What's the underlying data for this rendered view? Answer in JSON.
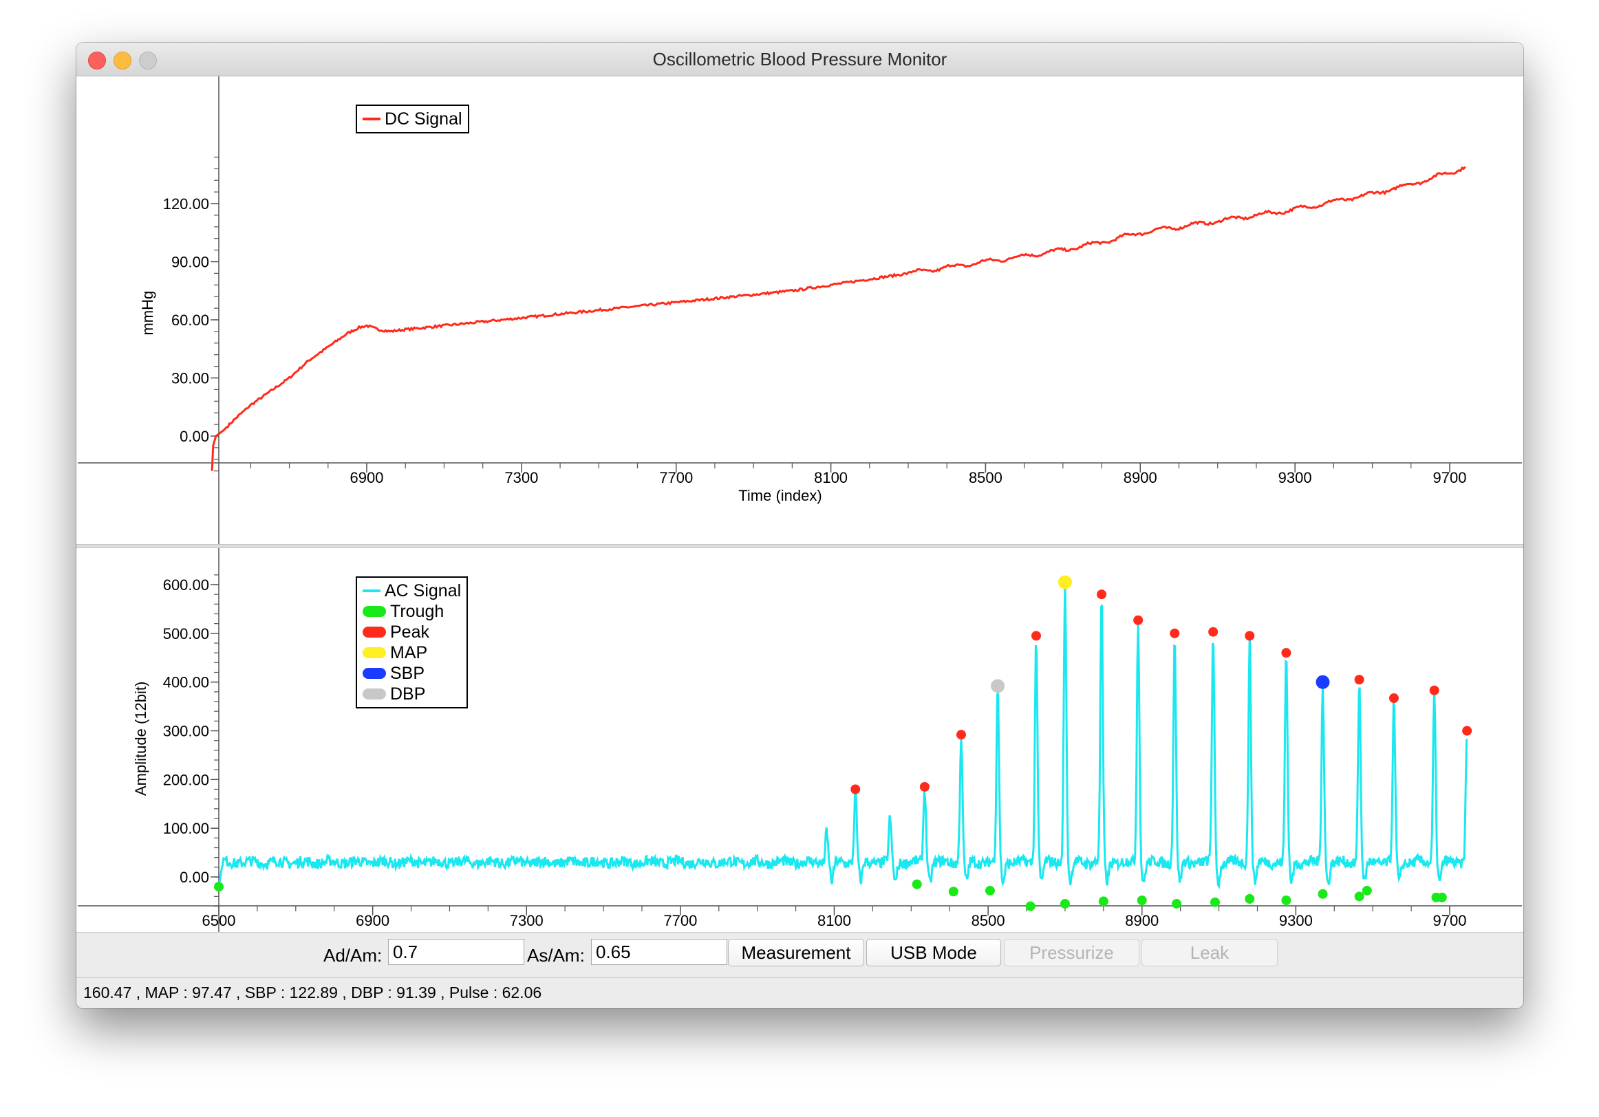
{
  "window": {
    "title": "Oscillometric Blood Pressure Monitor"
  },
  "chart_data": [
    {
      "type": "line",
      "ylabel": "mmHg",
      "xlabel": "Time  (index)",
      "xlim": [
        6500,
        9750
      ],
      "ylim": [
        -18,
        145
      ],
      "xticks": [
        6900,
        7300,
        7700,
        8100,
        8500,
        8900,
        9300,
        9700
      ],
      "xtick_labels": [
        "6900",
        "7300",
        "7700",
        "8100",
        "8500",
        "8900",
        "9300",
        "9700"
      ],
      "yticks": [
        0,
        30,
        60,
        90,
        120
      ],
      "ytick_labels": [
        "0.00",
        "30.00",
        "60.00",
        "90.00",
        "120.00"
      ],
      "legend_position": "top-left",
      "grid": false,
      "series": [
        {
          "name": "DC Signal",
          "color": "#ff2a1a",
          "x": [
            6500,
            6503,
            6510,
            6530,
            6560,
            6600,
            6650,
            6700,
            6750,
            6800,
            6850,
            6880,
            6900,
            6930,
            6960,
            7000,
            7050,
            7100,
            7200,
            7300,
            7400,
            7500,
            7600,
            7700,
            7800,
            7900,
            8000,
            8100,
            8200,
            8300,
            8400,
            8500,
            8600,
            8700,
            8800,
            8900,
            9000,
            9100,
            9200,
            9300,
            9400,
            9500,
            9600,
            9700,
            9740
          ],
          "y": [
            -18,
            -5,
            0,
            3,
            9,
            16,
            23,
            30,
            39,
            46,
            53,
            56,
            57,
            55,
            54,
            55,
            56,
            57,
            59,
            61,
            63,
            65,
            67,
            69,
            71,
            73,
            75,
            78,
            81,
            84,
            87,
            90,
            93,
            96,
            100,
            105,
            108,
            111,
            114,
            117,
            121,
            125,
            130,
            136,
            139
          ]
        }
      ]
    },
    {
      "type": "line",
      "ylabel": "Amplitude  (12bit)",
      "xlabel": "Time  (index)",
      "xlim": [
        6500,
        9750
      ],
      "ylim": [
        -62,
        630
      ],
      "xticks": [
        6500,
        6900,
        7300,
        7700,
        8100,
        8500,
        8900,
        9300,
        9700
      ],
      "xtick_labels": [
        "6500",
        "6900",
        "7300",
        "7700",
        "8100",
        "8500",
        "8900",
        "9300",
        "9700"
      ],
      "yticks": [
        0,
        100,
        200,
        300,
        400,
        500,
        600
      ],
      "ytick_labels": [
        "0.00",
        "100.00",
        "200.00",
        "300.00",
        "400.00",
        "500.00",
        "600.00"
      ],
      "legend_position": "top-left",
      "grid": false,
      "baseline": 30,
      "series": [
        {
          "name": "AC Signal",
          "color": "#19e8f0"
        },
        {
          "name": "Trough",
          "color": "#19e819",
          "x": [
            6500,
            8315,
            8410,
            8505,
            8610,
            8700,
            8800,
            8900,
            8990,
            9090,
            9180,
            9275,
            9370,
            9465,
            9485,
            9665,
            9680
          ],
          "y": [
            -20,
            -15,
            -30,
            -28,
            -60,
            -55,
            -50,
            -48,
            -55,
            -52,
            -45,
            -48,
            -35,
            -40,
            -28,
            -42,
            -42
          ]
        },
        {
          "name": "Peak",
          "color": "#ff2a1a",
          "x": [
            8155,
            8335,
            8430,
            8625,
            8795,
            8890,
            8985,
            9085,
            9180,
            9275,
            9465,
            9555,
            9660,
            9745
          ],
          "y": [
            180,
            185,
            292,
            495,
            580,
            527,
            500,
            503,
            495,
            460,
            405,
            367,
            383,
            300
          ]
        },
        {
          "name": "MAP",
          "color": "#ffee22",
          "x": [
            8700
          ],
          "y": [
            605
          ]
        },
        {
          "name": "SBP",
          "color": "#1a3cff",
          "x": [
            9370
          ],
          "y": [
            400
          ]
        },
        {
          "name": "DBP",
          "color": "#c8c8c8",
          "x": [
            8525
          ],
          "y": [
            392
          ]
        }
      ]
    }
  ],
  "controls": {
    "ad_am_label": "Ad/Am:",
    "ad_am_value": "0.7",
    "as_am_label": "As/Am:",
    "as_am_value": "0.65",
    "measurement_label": "Measurement",
    "usb_mode_label": "USB Mode",
    "pressurize_label": "Pressurize",
    "leak_label": "Leak"
  },
  "status": {
    "text": "160.47 , MAP : 97.47 , SBP : 122.89 , DBP : 91.39 , Pulse : 62.06"
  }
}
